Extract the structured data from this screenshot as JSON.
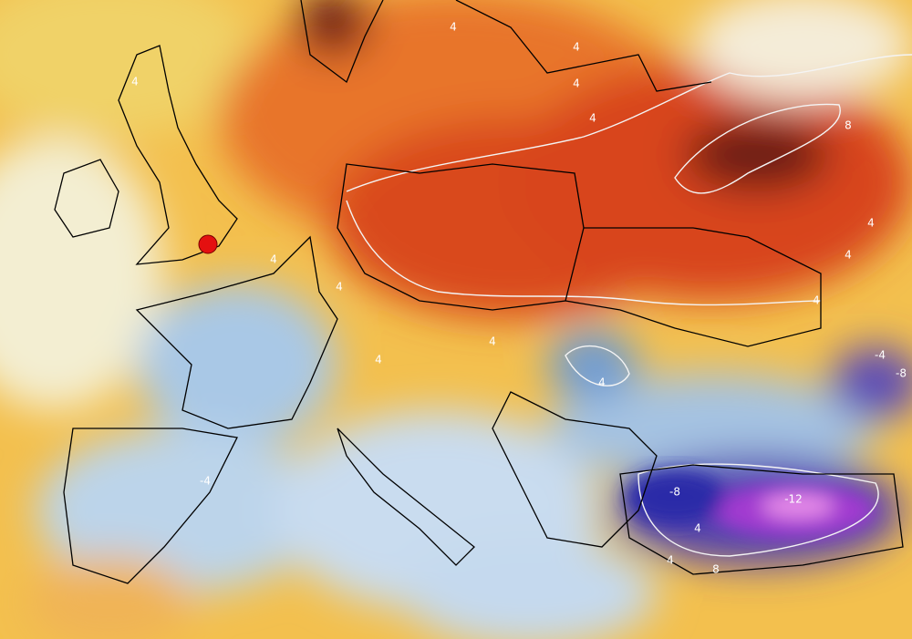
{
  "map": {
    "contour_labels": [
      "4",
      "4",
      "4",
      "4",
      "4",
      "8",
      "4",
      "4",
      "4",
      "4",
      "4",
      "4",
      "4",
      "4",
      "-4",
      "-8",
      "-4",
      "-8",
      "-12",
      "4",
      "8",
      "4"
    ]
  }
}
